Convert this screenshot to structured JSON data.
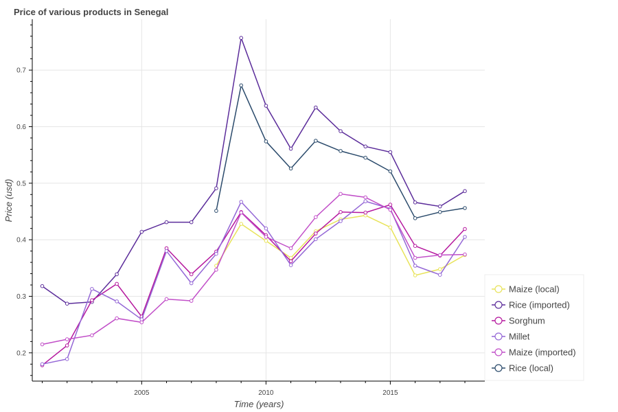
{
  "chart_data": {
    "type": "line",
    "title": "Price of various products in Senegal",
    "xlabel": "Time (years)",
    "ylabel": "Price (usd)",
    "xlim": [
      2000.6,
      2018.8
    ],
    "ylim": [
      0.15,
      0.79
    ],
    "xticks": [
      2005,
      2010,
      2015
    ],
    "yticks": [
      0.2,
      0.3,
      0.4,
      0.5,
      0.6,
      0.7
    ],
    "grid": true,
    "legend_position": "bottom-right",
    "series": [
      {
        "name": "Maize (local)",
        "color": "#e8e35a",
        "points": [
          [
            2008,
            0.354
          ],
          [
            2009,
            0.428
          ],
          [
            2010,
            0.398
          ],
          [
            2011,
            0.368
          ],
          [
            2012,
            0.415
          ],
          [
            2013,
            0.436
          ],
          [
            2014,
            0.443
          ],
          [
            2015,
            0.422
          ],
          [
            2016,
            0.337
          ],
          [
            2017,
            0.348
          ],
          [
            2018,
            0.373
          ]
        ]
      },
      {
        "name": "Rice (imported)",
        "color": "#5b2c9a",
        "points": [
          [
            2001,
            0.318
          ],
          [
            2002,
            0.287
          ],
          [
            2003,
            0.29
          ],
          [
            2004,
            0.339
          ],
          [
            2005,
            0.414
          ],
          [
            2006,
            0.431
          ],
          [
            2007,
            0.431
          ],
          [
            2008,
            0.491
          ],
          [
            2009,
            0.757
          ],
          [
            2010,
            0.637
          ],
          [
            2011,
            0.561
          ],
          [
            2012,
            0.634
          ],
          [
            2013,
            0.592
          ],
          [
            2014,
            0.565
          ],
          [
            2015,
            0.555
          ],
          [
            2016,
            0.466
          ],
          [
            2017,
            0.459
          ],
          [
            2018,
            0.486
          ]
        ]
      },
      {
        "name": "Sorghum",
        "color": "#b5179e",
        "points": [
          [
            2001,
            0.178
          ],
          [
            2002,
            0.213
          ],
          [
            2003,
            0.293
          ],
          [
            2004,
            0.322
          ],
          [
            2005,
            0.264
          ],
          [
            2006,
            0.385
          ],
          [
            2007,
            0.339
          ],
          [
            2008,
            0.379
          ],
          [
            2009,
            0.449
          ],
          [
            2010,
            0.408
          ],
          [
            2011,
            0.362
          ],
          [
            2012,
            0.411
          ],
          [
            2013,
            0.449
          ],
          [
            2014,
            0.448
          ],
          [
            2015,
            0.462
          ],
          [
            2016,
            0.389
          ],
          [
            2017,
            0.372
          ],
          [
            2018,
            0.419
          ]
        ]
      },
      {
        "name": "Millet",
        "color": "#9467d6",
        "points": [
          [
            2001,
            0.18
          ],
          [
            2002,
            0.189
          ],
          [
            2003,
            0.313
          ],
          [
            2004,
            0.291
          ],
          [
            2005,
            0.259
          ],
          [
            2006,
            0.38
          ],
          [
            2007,
            0.323
          ],
          [
            2008,
            0.375
          ],
          [
            2009,
            0.467
          ],
          [
            2010,
            0.42
          ],
          [
            2011,
            0.355
          ],
          [
            2012,
            0.401
          ],
          [
            2013,
            0.433
          ],
          [
            2014,
            0.468
          ],
          [
            2015,
            0.455
          ],
          [
            2016,
            0.354
          ],
          [
            2017,
            0.338
          ],
          [
            2018,
            0.405
          ]
        ]
      },
      {
        "name": "Maize (imported)",
        "color": "#c14ec8",
        "points": [
          [
            2001,
            0.215
          ],
          [
            2002,
            0.224
          ],
          [
            2003,
            0.231
          ],
          [
            2004,
            0.261
          ],
          [
            2005,
            0.254
          ],
          [
            2006,
            0.295
          ],
          [
            2007,
            0.292
          ],
          [
            2008,
            0.347
          ],
          [
            2009,
            0.448
          ],
          [
            2010,
            0.405
          ],
          [
            2011,
            0.385
          ],
          [
            2012,
            0.44
          ],
          [
            2013,
            0.481
          ],
          [
            2014,
            0.475
          ],
          [
            2015,
            0.453
          ],
          [
            2016,
            0.368
          ],
          [
            2017,
            0.373
          ],
          [
            2018,
            0.374
          ]
        ]
      },
      {
        "name": "Rice (local)",
        "color": "#2a4a6b",
        "points": [
          [
            2008,
            0.451
          ],
          [
            2009,
            0.673
          ],
          [
            2010,
            0.574
          ],
          [
            2011,
            0.526
          ],
          [
            2012,
            0.575
          ],
          [
            2013,
            0.557
          ],
          [
            2014,
            0.545
          ],
          [
            2015,
            0.521
          ],
          [
            2016,
            0.438
          ],
          [
            2017,
            0.449
          ],
          [
            2018,
            0.456
          ]
        ]
      }
    ]
  }
}
